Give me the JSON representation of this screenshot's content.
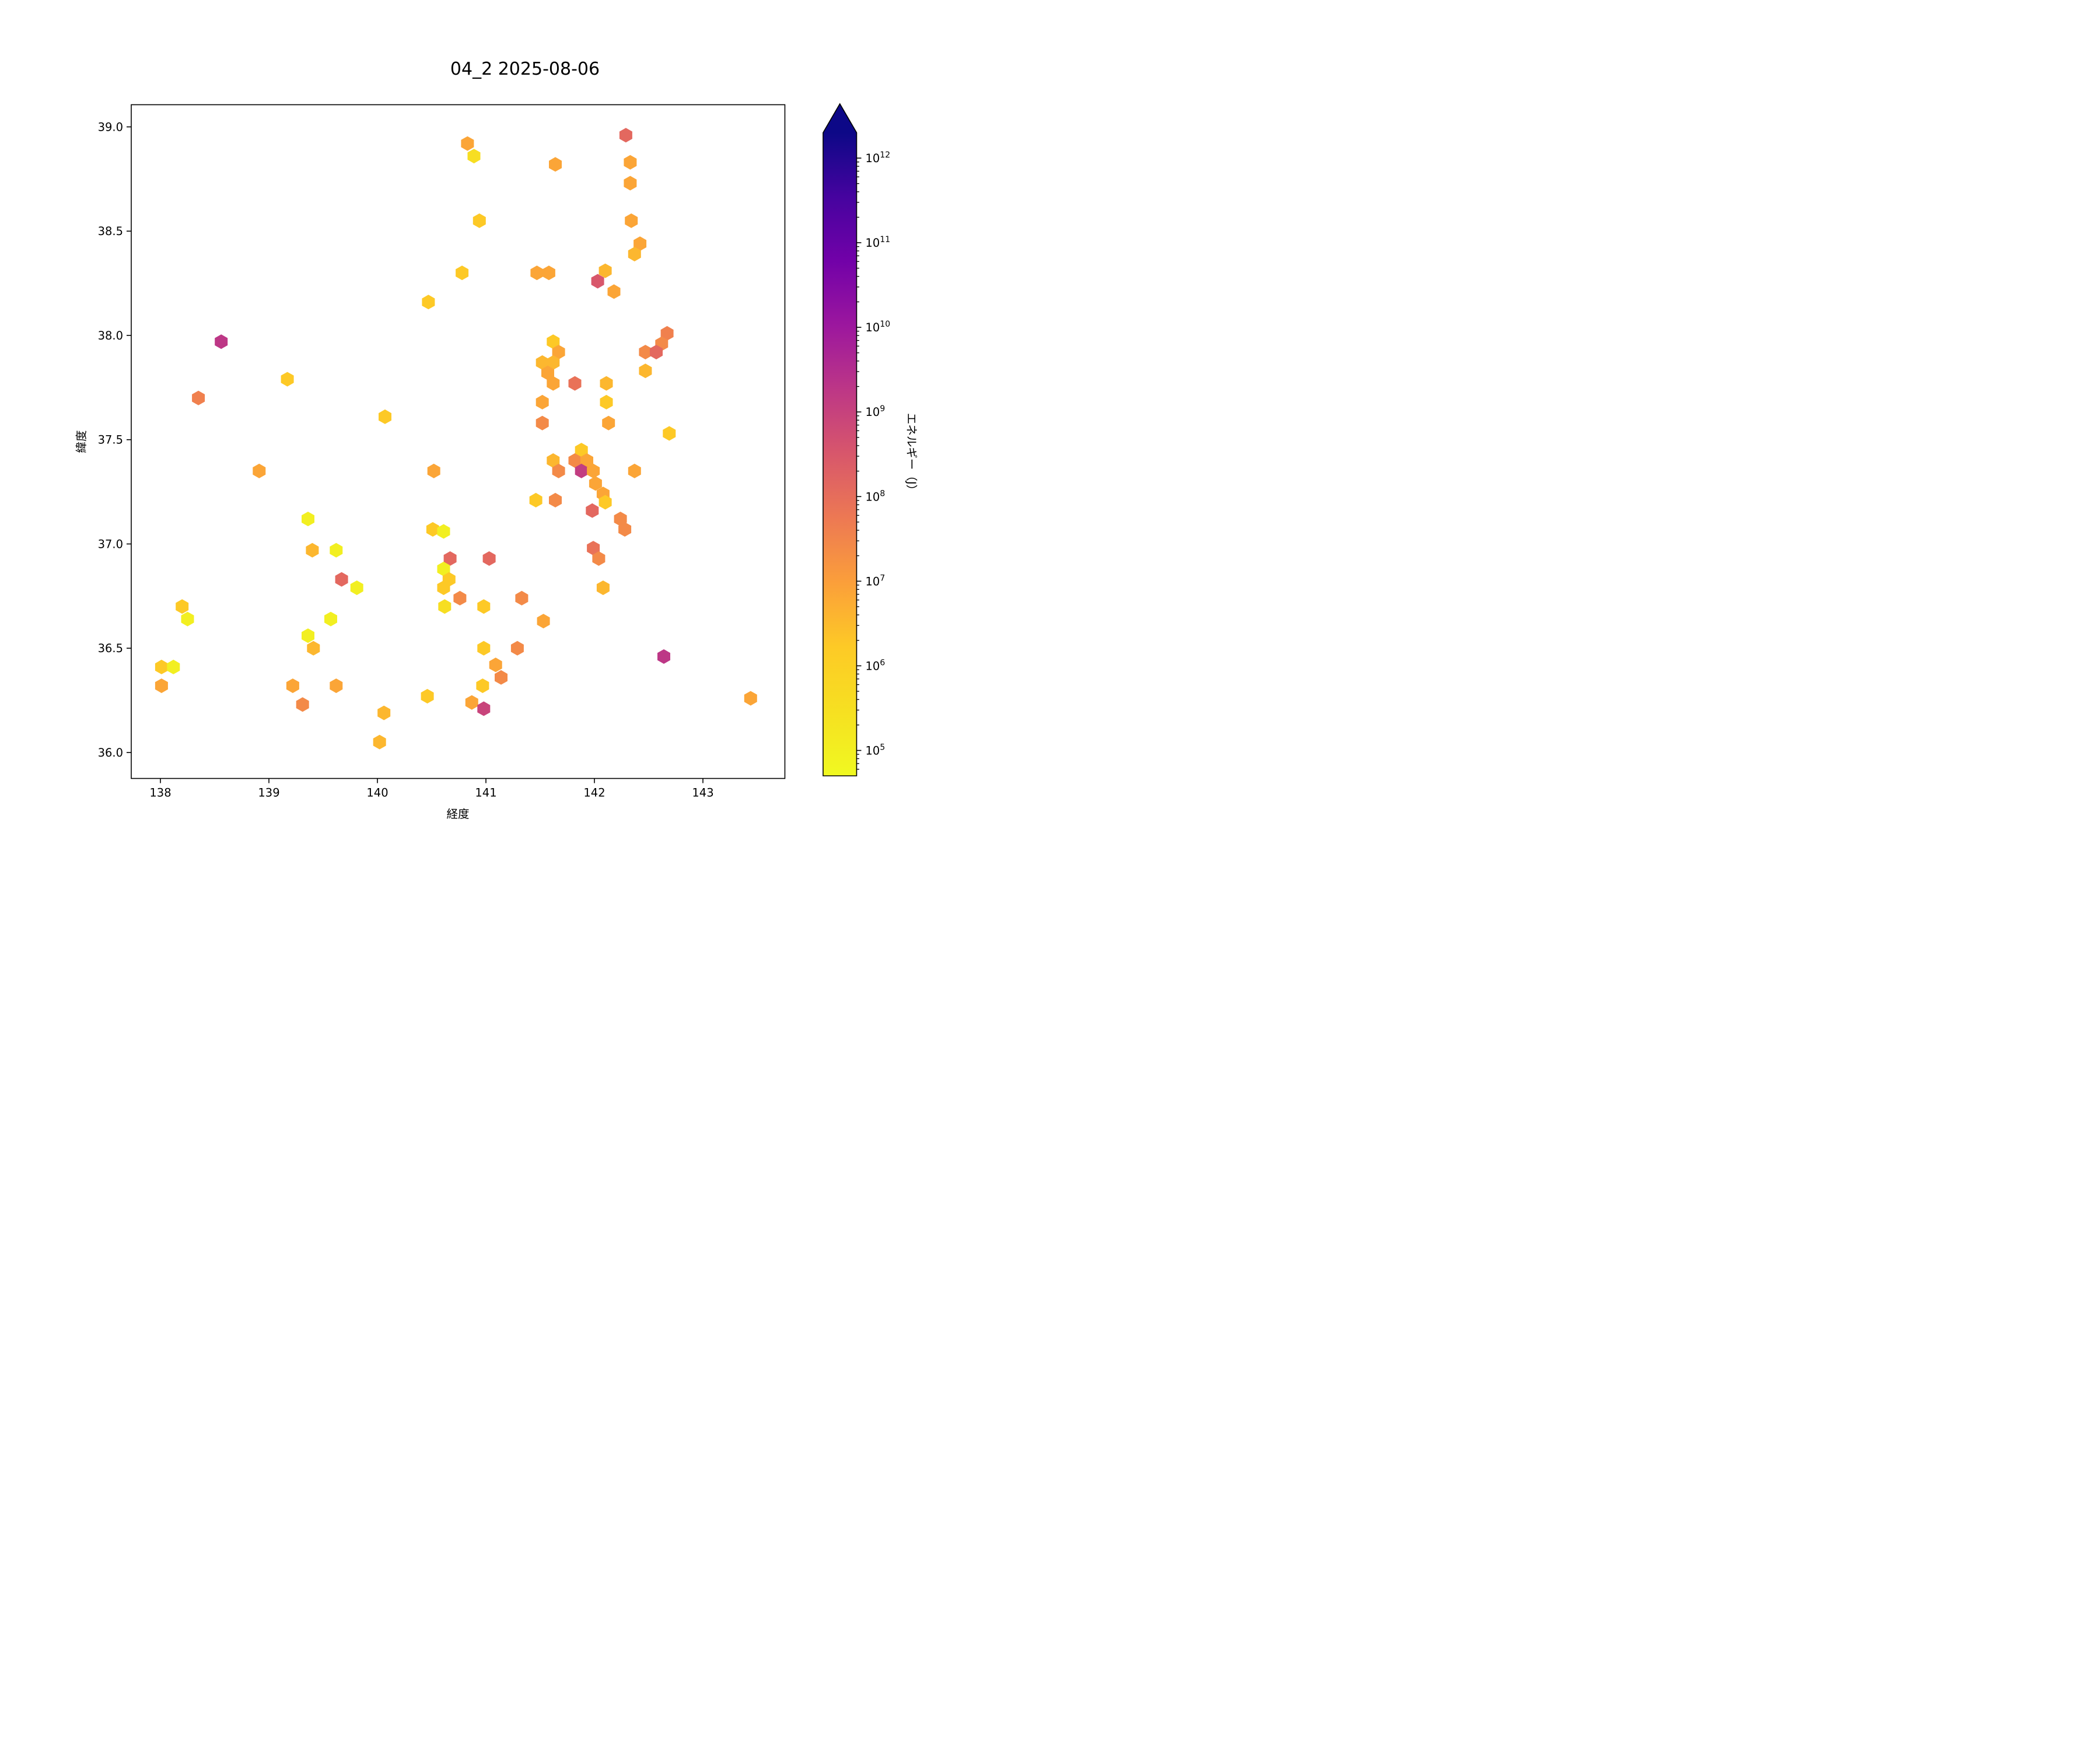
{
  "chart_data": {
    "type": "hexbin-scatter",
    "title": "04_2 2025-08-06",
    "xlabel": "経度",
    "ylabel": "緯度",
    "xlim": [
      137.73,
      143.76
    ],
    "ylim": [
      35.88,
      39.11
    ],
    "grid": false,
    "x_ticks": [
      138,
      139,
      140,
      141,
      142,
      143
    ],
    "x_tick_labels": [
      "138",
      "139",
      "140",
      "141",
      "142",
      "143"
    ],
    "y_ticks": [
      36.0,
      36.5,
      37.0,
      37.5,
      38.0,
      38.5,
      39.0
    ],
    "y_tick_labels": [
      "36.0",
      "36.5",
      "37.0",
      "37.5",
      "38.0",
      "38.5",
      "39.0"
    ],
    "colorbar": {
      "label": "エネルギー（J）",
      "scale": "log",
      "tick_exponents": [
        5,
        6,
        7,
        8,
        9,
        10,
        11,
        12
      ],
      "vmin_exponent": 4.7,
      "vmax_exponent": 12.3,
      "extend": "max",
      "colormap": "plasma_r",
      "plasma_stops": [
        [
          0.0,
          13,
          8,
          135
        ],
        [
          0.1,
          70,
          3,
          159
        ],
        [
          0.2,
          114,
          1,
          168
        ],
        [
          0.3,
          156,
          23,
          158
        ],
        [
          0.4,
          189,
          55,
          134
        ],
        [
          0.5,
          216,
          87,
          107
        ],
        [
          0.6,
          237,
          121,
          83
        ],
        [
          0.7,
          251,
          159,
          58
        ],
        [
          0.8,
          253,
          202,
          38
        ],
        [
          0.9,
          246,
          224,
          33
        ],
        [
          1.0,
          240,
          249,
          33
        ]
      ]
    },
    "points_format": [
      "lon",
      "lat",
      "energy_j"
    ],
    "points": [
      [
        138.56,
        37.97,
        1800000000.0
      ],
      [
        140.47,
        38.16,
        1700000.0
      ],
      [
        139.17,
        37.79,
        1700000.0
      ],
      [
        138.35,
        37.7,
        40000000.0
      ],
      [
        140.07,
        37.61,
        1700000.0
      ],
      [
        140.83,
        38.92,
        7400000.0
      ],
      [
        140.89,
        38.86,
        350000.0
      ],
      [
        141.64,
        38.82,
        7400000.0
      ],
      [
        142.29,
        38.96,
        130000000.0
      ],
      [
        142.33,
        38.83,
        7400000.0
      ],
      [
        142.33,
        38.73,
        7400000.0
      ],
      [
        140.94,
        38.55,
        1700000.0
      ],
      [
        142.34,
        38.55,
        7400000.0
      ],
      [
        142.42,
        38.44,
        7400000.0
      ],
      [
        142.37,
        38.39,
        3600000.0
      ],
      [
        140.78,
        38.3,
        1700000.0
      ],
      [
        141.47,
        38.3,
        7400000.0
      ],
      [
        141.58,
        38.3,
        7400000.0
      ],
      [
        142.1,
        38.31,
        3600000.0
      ],
      [
        142.03,
        38.26,
        320000000.0
      ],
      [
        142.18,
        38.21,
        7400000.0
      ],
      [
        142.67,
        38.01,
        40000000.0
      ],
      [
        142.62,
        37.96,
        25000000.0
      ],
      [
        142.47,
        37.92,
        25000000.0
      ],
      [
        142.57,
        37.92,
        130000000.0
      ],
      [
        142.47,
        37.83,
        3600000.0
      ],
      [
        141.62,
        37.97,
        1700000.0
      ],
      [
        141.67,
        37.92,
        7400000.0
      ],
      [
        141.52,
        37.87,
        3600000.0
      ],
      [
        141.62,
        37.87,
        3600000.0
      ],
      [
        141.57,
        37.82,
        7400000.0
      ],
      [
        141.62,
        37.77,
        7400000.0
      ],
      [
        141.82,
        37.77,
        78000000.0
      ],
      [
        142.11,
        37.77,
        3600000.0
      ],
      [
        141.52,
        37.68,
        7400000.0
      ],
      [
        142.11,
        37.68,
        1700000.0
      ],
      [
        141.52,
        37.58,
        25000000.0
      ],
      [
        142.13,
        37.58,
        7400000.0
      ],
      [
        142.69,
        37.53,
        1700000.0
      ],
      [
        141.88,
        37.45,
        1700000.0
      ],
      [
        141.62,
        37.4,
        3600000.0
      ],
      [
        141.82,
        37.4,
        25000000.0
      ],
      [
        141.93,
        37.4,
        7400000.0
      ],
      [
        141.67,
        37.35,
        25000000.0
      ],
      [
        141.88,
        37.35,
        1300000000.0
      ],
      [
        141.99,
        37.35,
        7400000.0
      ],
      [
        142.01,
        37.29,
        7400000.0
      ],
      [
        142.08,
        37.24,
        7400000.0
      ],
      [
        142.1,
        37.2,
        1700000.0
      ],
      [
        141.46,
        37.21,
        1700000.0
      ],
      [
        141.64,
        37.21,
        25000000.0
      ],
      [
        142.37,
        37.35,
        7400000.0
      ],
      [
        141.98,
        37.16,
        130000000.0
      ],
      [
        142.24,
        37.12,
        25000000.0
      ],
      [
        142.28,
        37.07,
        25000000.0
      ],
      [
        141.99,
        36.98,
        78000000.0
      ],
      [
        142.04,
        36.93,
        25000000.0
      ],
      [
        141.03,
        36.93,
        130000000.0
      ],
      [
        142.08,
        36.79,
        3600000.0
      ],
      [
        141.33,
        36.74,
        25000000.0
      ],
      [
        140.98,
        36.7,
        1700000.0
      ],
      [
        140.76,
        36.74,
        25000000.0
      ],
      [
        141.53,
        36.63,
        7400000.0
      ],
      [
        140.98,
        36.5,
        1700000.0
      ],
      [
        141.29,
        36.5,
        25000000.0
      ],
      [
        142.64,
        36.46,
        1800000000.0
      ],
      [
        141.09,
        36.42,
        7400000.0
      ],
      [
        141.14,
        36.36,
        25000000.0
      ],
      [
        140.97,
        36.32,
        1700000.0
      ],
      [
        140.87,
        36.24,
        7400000.0
      ],
      [
        140.98,
        36.21,
        900000000.0
      ],
      [
        143.44,
        36.26,
        7400000.0
      ],
      [
        138.91,
        37.35,
        7400000.0
      ],
      [
        140.52,
        37.35,
        7400000.0
      ],
      [
        139.36,
        37.12,
        100000.0
      ],
      [
        140.51,
        37.07,
        1700000.0
      ],
      [
        140.61,
        37.06,
        100000.0
      ],
      [
        139.4,
        36.97,
        3600000.0
      ],
      [
        139.62,
        36.97,
        100000.0
      ],
      [
        139.67,
        36.83,
        130000000.0
      ],
      [
        139.81,
        36.79,
        100000.0
      ],
      [
        140.67,
        36.93,
        130000000.0
      ],
      [
        140.61,
        36.88,
        100000.0
      ],
      [
        140.66,
        36.83,
        1700000.0
      ],
      [
        140.61,
        36.79,
        1700000.0
      ],
      [
        140.62,
        36.7,
        350000.0
      ],
      [
        138.2,
        36.7,
        1700000.0
      ],
      [
        138.25,
        36.64,
        100000.0
      ],
      [
        139.57,
        36.64,
        100000.0
      ],
      [
        139.36,
        36.56,
        100000.0
      ],
      [
        139.41,
        36.5,
        3600000.0
      ],
      [
        138.01,
        36.41,
        1700000.0
      ],
      [
        138.12,
        36.41,
        100000.0
      ],
      [
        138.01,
        36.32,
        7400000.0
      ],
      [
        139.22,
        36.32,
        7400000.0
      ],
      [
        139.62,
        36.32,
        7400000.0
      ],
      [
        139.31,
        36.23,
        25000000.0
      ],
      [
        140.46,
        36.27,
        1700000.0
      ],
      [
        140.06,
        36.19,
        3600000.0
      ],
      [
        140.02,
        36.05,
        3600000.0
      ]
    ]
  }
}
